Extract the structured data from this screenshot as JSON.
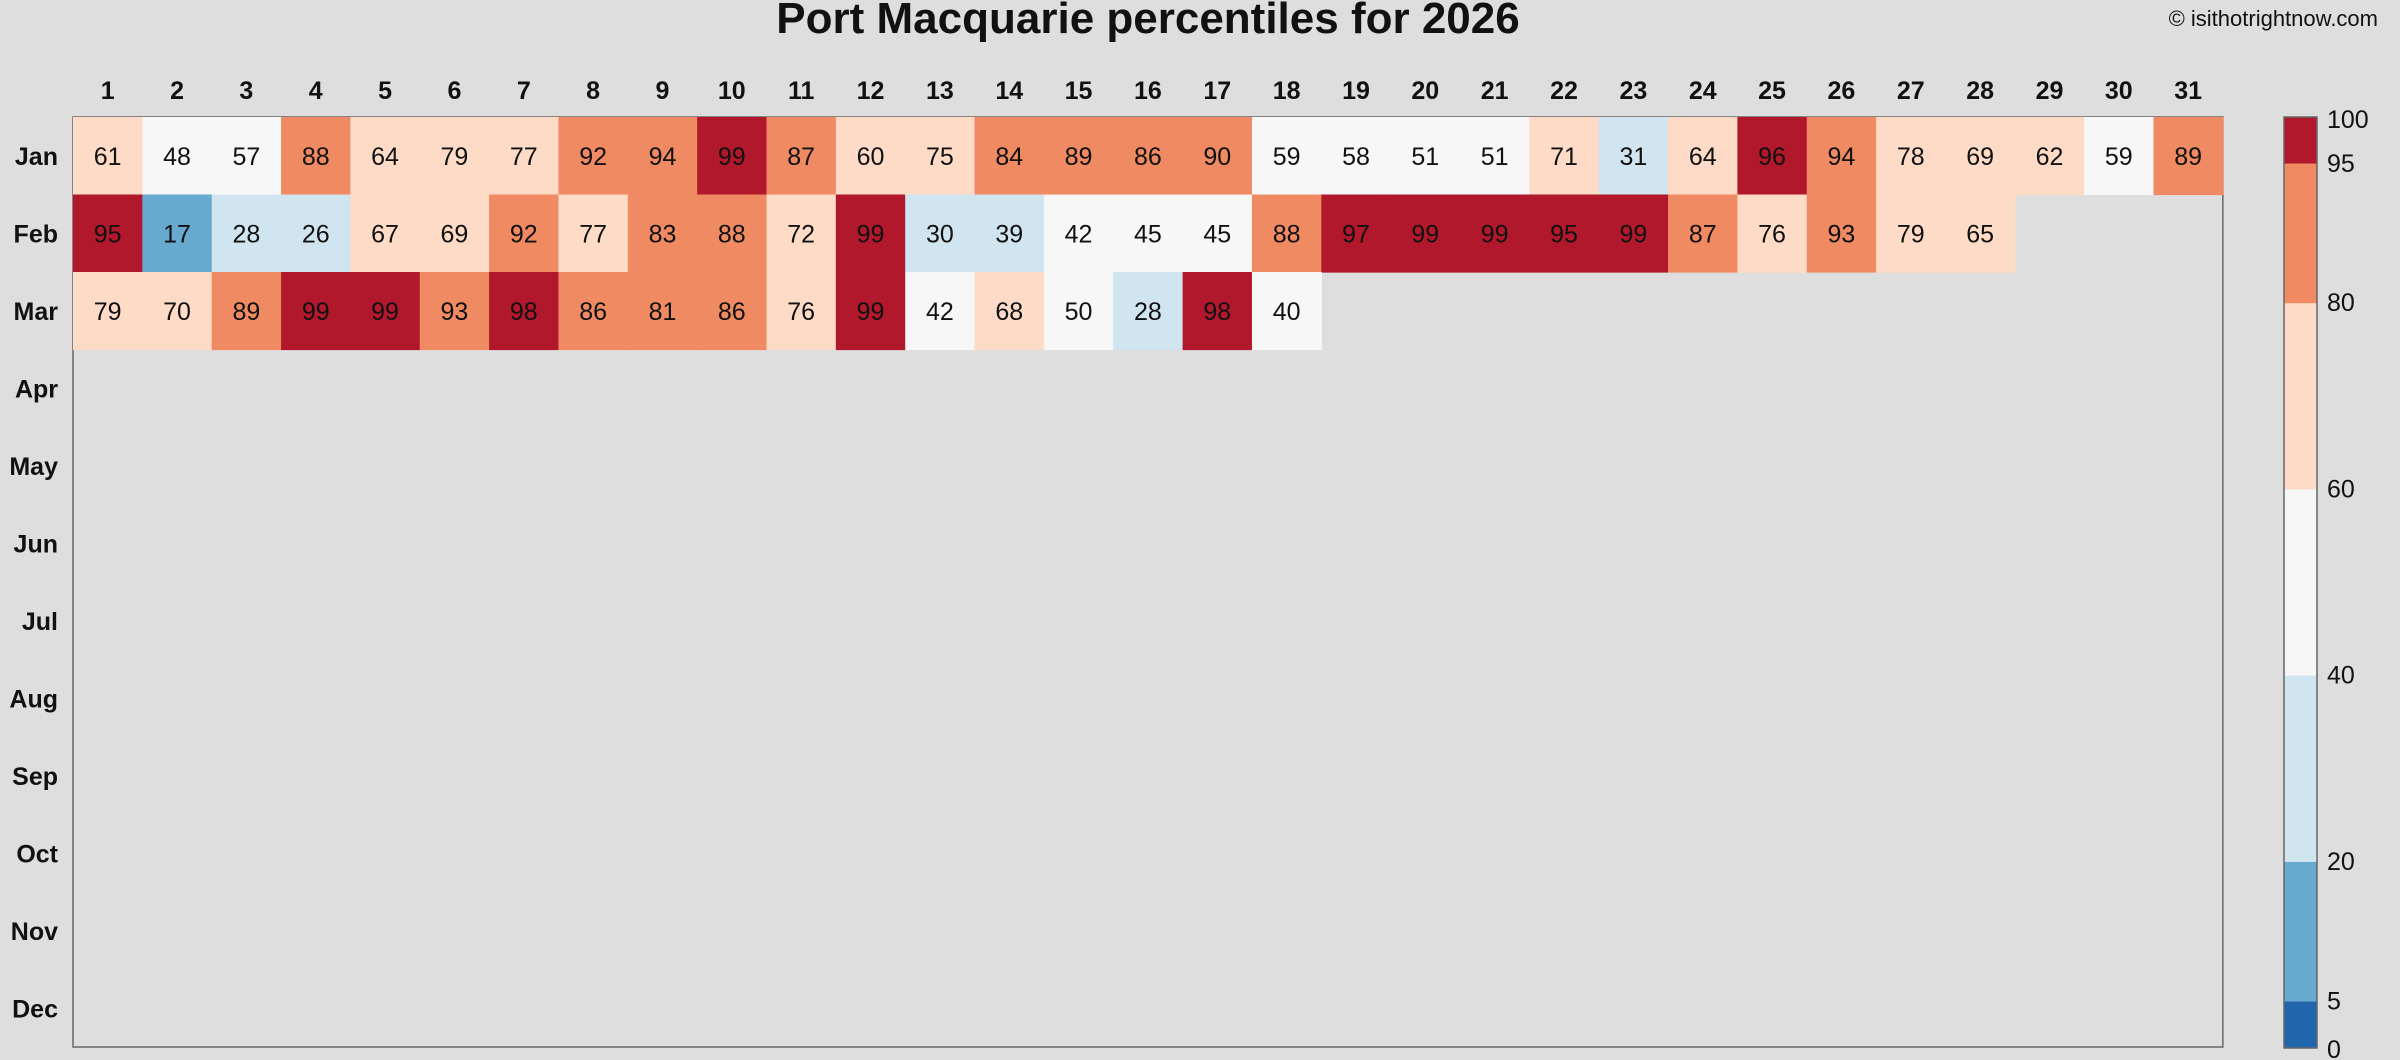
{
  "chart_data": {
    "type": "heatmap",
    "title": "Port Macquarie percentiles for 2026",
    "credit": "© isithotrightnow.com",
    "x_categories": [
      "1",
      "2",
      "3",
      "4",
      "5",
      "6",
      "7",
      "8",
      "9",
      "10",
      "11",
      "12",
      "13",
      "14",
      "15",
      "16",
      "17",
      "18",
      "19",
      "20",
      "21",
      "22",
      "23",
      "24",
      "25",
      "26",
      "27",
      "28",
      "29",
      "30",
      "31"
    ],
    "y_categories": [
      "Jan",
      "Feb",
      "Mar",
      "Apr",
      "May",
      "Jun",
      "Jul",
      "Aug",
      "Sep",
      "Oct",
      "Nov",
      "Dec"
    ],
    "values": [
      [
        61,
        48,
        57,
        88,
        64,
        79,
        77,
        92,
        94,
        99,
        87,
        60,
        75,
        84,
        89,
        86,
        90,
        59,
        58,
        51,
        51,
        71,
        31,
        64,
        96,
        94,
        78,
        69,
        62,
        59,
        89
      ],
      [
        95,
        17,
        28,
        26,
        67,
        69,
        92,
        77,
        83,
        88,
        72,
        99,
        30,
        39,
        42,
        45,
        45,
        88,
        97,
        99,
        99,
        95,
        99,
        87,
        76,
        93,
        79,
        65
      ],
      [
        79,
        70,
        89,
        99,
        99,
        93,
        98,
        86,
        81,
        86,
        76,
        99,
        42,
        68,
        50,
        28,
        98,
        40
      ],
      [],
      [],
      [],
      [],
      [],
      [],
      [],
      [],
      []
    ],
    "colorbar": {
      "breaks": [
        0,
        5,
        20,
        40,
        60,
        80,
        95,
        100
      ],
      "tick_labels": [
        "0",
        "5",
        "20",
        "40",
        "60",
        "80",
        "95",
        "100"
      ],
      "colors": [
        "#2166ac",
        "#67a9cf",
        "#d1e5f0",
        "#f7f7f7",
        "#fddbc7",
        "#ef8a62",
        "#b2182b"
      ]
    },
    "background": "#dedede"
  }
}
